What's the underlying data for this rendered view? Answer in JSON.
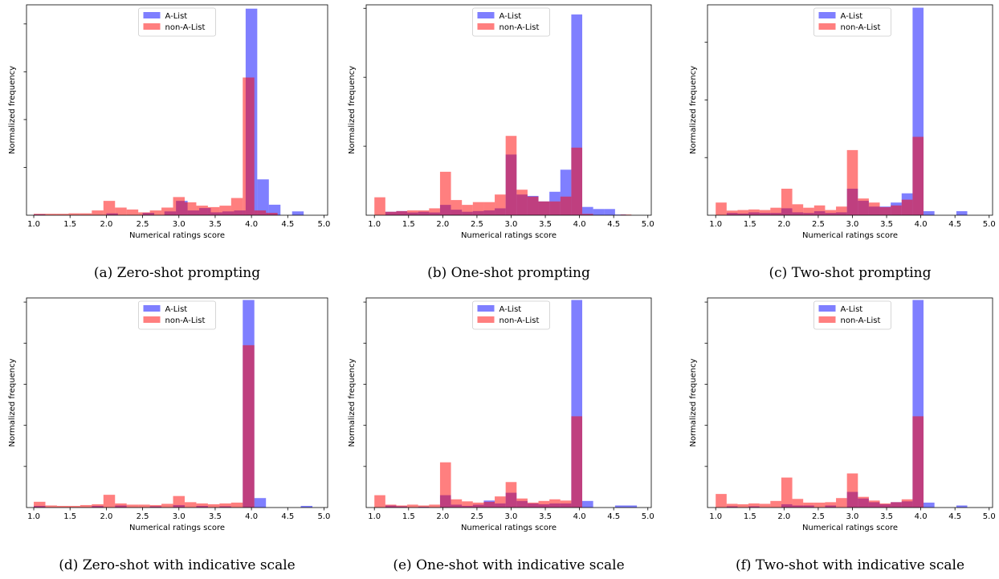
{
  "colors": {
    "alist": "#0000ff",
    "nonalist": "#ff0000"
  },
  "chart_data": [
    {
      "type": "bar",
      "caption": "(a) Zero-shot prompting",
      "xlabel": "Numerical ratings score",
      "ylabel": "Normalized frequency",
      "xlim": [
        0.9,
        5.05
      ],
      "ylim": [
        0,
        4.4
      ],
      "xticks": [
        "1.0",
        "1.5",
        "2.0",
        "2.5",
        "3.0",
        "3.5",
        "4.0",
        "4.5",
        "5.0"
      ],
      "bin_width": 0.16,
      "legend": {
        "position": "top-center",
        "entries": [
          "A-List",
          "non-A-List"
        ]
      },
      "series": [
        {
          "name": "A-List",
          "bins": [
            [
              1.0,
              0.02
            ],
            [
              2.0,
              0.04
            ],
            [
              2.5,
              0.05
            ],
            [
              2.8,
              0.08
            ],
            [
              2.96,
              0.3
            ],
            [
              3.12,
              0.1
            ],
            [
              3.28,
              0.15
            ],
            [
              3.44,
              0.06
            ],
            [
              3.6,
              0.08
            ],
            [
              3.76,
              0.1
            ],
            [
              3.92,
              4.32
            ],
            [
              4.08,
              0.75
            ],
            [
              4.24,
              0.22
            ],
            [
              4.56,
              0.08
            ]
          ]
        },
        {
          "name": "non-A-List",
          "bins": [
            [
              1.0,
              0.03
            ],
            [
              1.16,
              0.03
            ],
            [
              1.32,
              0.03
            ],
            [
              1.48,
              0.04
            ],
            [
              1.64,
              0.04
            ],
            [
              1.8,
              0.1
            ],
            [
              1.96,
              0.3
            ],
            [
              2.12,
              0.16
            ],
            [
              2.28,
              0.12
            ],
            [
              2.44,
              0.06
            ],
            [
              2.6,
              0.1
            ],
            [
              2.76,
              0.16
            ],
            [
              2.92,
              0.38
            ],
            [
              3.08,
              0.27
            ],
            [
              3.24,
              0.2
            ],
            [
              3.4,
              0.17
            ],
            [
              3.56,
              0.2
            ],
            [
              3.72,
              0.36
            ],
            [
              3.88,
              2.88
            ],
            [
              4.04,
              0.1
            ],
            [
              4.2,
              0.05
            ]
          ]
        }
      ]
    },
    {
      "type": "bar",
      "caption": "(b) One-shot prompting",
      "xlabel": "Numerical ratings score",
      "ylabel": "Normalized frequency",
      "xlim": [
        0.88,
        5.05
      ],
      "ylim": [
        0,
        3.05
      ],
      "xticks": [
        "1.0",
        "1.5",
        "2.0",
        "2.5",
        "3.0",
        "3.5",
        "4.0",
        "4.5",
        "5.0"
      ],
      "bin_width": 0.16,
      "legend": {
        "position": "top-center",
        "entries": [
          "A-List",
          "non-A-List"
        ]
      },
      "series": [
        {
          "name": "A-List",
          "bins": [
            [
              1.16,
              0.05
            ],
            [
              1.32,
              0.06
            ],
            [
              1.48,
              0.04
            ],
            [
              1.64,
              0.05
            ],
            [
              1.8,
              0.04
            ],
            [
              1.96,
              0.15
            ],
            [
              2.12,
              0.08
            ],
            [
              2.28,
              0.05
            ],
            [
              2.44,
              0.06
            ],
            [
              2.6,
              0.07
            ],
            [
              2.76,
              0.1
            ],
            [
              2.92,
              0.88
            ],
            [
              3.08,
              0.3
            ],
            [
              3.24,
              0.28
            ],
            [
              3.4,
              0.2
            ],
            [
              3.56,
              0.34
            ],
            [
              3.72,
              0.66
            ],
            [
              3.88,
              2.91
            ],
            [
              4.04,
              0.12
            ],
            [
              4.2,
              0.09
            ],
            [
              4.36,
              0.09
            ],
            [
              4.52,
              0.01
            ]
          ]
        },
        {
          "name": "non-A-List",
          "bins": [
            [
              1.0,
              0.26
            ],
            [
              1.16,
              0.05
            ],
            [
              1.32,
              0.06
            ],
            [
              1.48,
              0.07
            ],
            [
              1.64,
              0.07
            ],
            [
              1.8,
              0.1
            ],
            [
              1.96,
              0.63
            ],
            [
              2.12,
              0.22
            ],
            [
              2.28,
              0.15
            ],
            [
              2.44,
              0.19
            ],
            [
              2.6,
              0.19
            ],
            [
              2.76,
              0.3
            ],
            [
              2.92,
              1.15
            ],
            [
              3.08,
              0.37
            ],
            [
              3.24,
              0.27
            ],
            [
              3.4,
              0.2
            ],
            [
              3.56,
              0.2
            ],
            [
              3.72,
              0.27
            ],
            [
              3.88,
              0.98
            ],
            [
              4.04,
              0.02
            ],
            [
              4.6,
              0.01
            ]
          ]
        }
      ]
    },
    {
      "type": "bar",
      "caption": "(c) Two-shot prompting",
      "xlabel": "Numerical ratings score",
      "ylabel": "Normalized frequency",
      "xlim": [
        0.88,
        5.05
      ],
      "ylim": [
        0,
        3.65
      ],
      "xticks": [
        "1.0",
        "1.5",
        "2.0",
        "2.5",
        "3.0",
        "3.5",
        "4.0",
        "4.5",
        "5.0"
      ],
      "bin_width": 0.16,
      "legend": {
        "position": "top-center",
        "entries": [
          "A-List",
          "non-A-List"
        ]
      },
      "series": [
        {
          "name": "A-List",
          "bins": [
            [
              1.16,
              0.04
            ],
            [
              1.32,
              0.03
            ],
            [
              1.48,
              0.05
            ],
            [
              1.64,
              0.04
            ],
            [
              1.8,
              0.04
            ],
            [
              1.96,
              0.12
            ],
            [
              2.12,
              0.05
            ],
            [
              2.28,
              0.04
            ],
            [
              2.44,
              0.07
            ],
            [
              2.6,
              0.04
            ],
            [
              2.76,
              0.05
            ],
            [
              2.92,
              0.46
            ],
            [
              3.08,
              0.25
            ],
            [
              3.24,
              0.15
            ],
            [
              3.4,
              0.15
            ],
            [
              3.56,
              0.22
            ],
            [
              3.72,
              0.38
            ],
            [
              3.88,
              3.6
            ],
            [
              4.04,
              0.07
            ],
            [
              4.52,
              0.07
            ]
          ]
        },
        {
          "name": "non-A-List",
          "bins": [
            [
              1.0,
              0.22
            ],
            [
              1.16,
              0.08
            ],
            [
              1.32,
              0.09
            ],
            [
              1.48,
              0.1
            ],
            [
              1.64,
              0.09
            ],
            [
              1.8,
              0.13
            ],
            [
              1.96,
              0.46
            ],
            [
              2.12,
              0.19
            ],
            [
              2.28,
              0.13
            ],
            [
              2.44,
              0.17
            ],
            [
              2.6,
              0.09
            ],
            [
              2.76,
              0.15
            ],
            [
              2.92,
              1.13
            ],
            [
              3.08,
              0.29
            ],
            [
              3.24,
              0.22
            ],
            [
              3.4,
              0.14
            ],
            [
              3.56,
              0.17
            ],
            [
              3.72,
              0.27
            ],
            [
              3.88,
              1.36
            ]
          ]
        }
      ]
    },
    {
      "type": "bar",
      "caption": "(d) Zero-shot with indicative scale",
      "xlabel": "Numerical ratings score",
      "ylabel": "Normalized frequency",
      "xlim": [
        0.9,
        5.05
      ],
      "ylim": [
        0,
        5.1
      ],
      "xticks": [
        "1.0",
        "1.5",
        "2.0",
        "2.5",
        "3.0",
        "3.5",
        "4.0",
        "4.5",
        "5.0"
      ],
      "bin_width": 0.16,
      "legend": {
        "position": "top-center",
        "entries": [
          "A-List",
          "non-A-List"
        ]
      },
      "series": [
        {
          "name": "A-List",
          "bins": [
            [
              1.0,
              0.04
            ],
            [
              1.8,
              0.04
            ],
            [
              2.12,
              0.05
            ],
            [
              2.6,
              0.03
            ],
            [
              2.92,
              0.06
            ],
            [
              3.24,
              0.04
            ],
            [
              3.56,
              0.03
            ],
            [
              3.88,
              5.05
            ],
            [
              4.04,
              0.23
            ],
            [
              4.68,
              0.04
            ]
          ]
        },
        {
          "name": "non-A-List",
          "bins": [
            [
              1.0,
              0.14
            ],
            [
              1.16,
              0.05
            ],
            [
              1.32,
              0.04
            ],
            [
              1.48,
              0.04
            ],
            [
              1.64,
              0.06
            ],
            [
              1.8,
              0.08
            ],
            [
              1.96,
              0.31
            ],
            [
              2.12,
              0.1
            ],
            [
              2.28,
              0.07
            ],
            [
              2.44,
              0.07
            ],
            [
              2.6,
              0.06
            ],
            [
              2.76,
              0.09
            ],
            [
              2.92,
              0.28
            ],
            [
              3.08,
              0.13
            ],
            [
              3.24,
              0.1
            ],
            [
              3.4,
              0.08
            ],
            [
              3.56,
              0.1
            ],
            [
              3.72,
              0.12
            ],
            [
              3.88,
              3.95
            ]
          ]
        }
      ]
    },
    {
      "type": "bar",
      "caption": "(e) One-shot with indicative scale",
      "xlabel": "Numerical ratings score",
      "ylabel": "Normalized frequency",
      "xlim": [
        0.88,
        5.05
      ],
      "ylim": [
        0,
        5.1
      ],
      "xticks": [
        "1.0",
        "1.5",
        "2.0",
        "2.5",
        "3.0",
        "3.5",
        "4.0",
        "4.5",
        "5.0"
      ],
      "bin_width": 0.16,
      "legend": {
        "position": "top-center",
        "entries": [
          "A-List",
          "non-A-List"
        ]
      },
      "series": [
        {
          "name": "A-List",
          "bins": [
            [
              1.16,
              0.05
            ],
            [
              1.32,
              0.03
            ],
            [
              1.64,
              0.02
            ],
            [
              1.96,
              0.3
            ],
            [
              2.12,
              0.07
            ],
            [
              2.28,
              0.04
            ],
            [
              2.44,
              0.07
            ],
            [
              2.6,
              0.17
            ],
            [
              2.76,
              0.1
            ],
            [
              2.92,
              0.36
            ],
            [
              3.08,
              0.16
            ],
            [
              3.24,
              0.1
            ],
            [
              3.4,
              0.08
            ],
            [
              3.56,
              0.1
            ],
            [
              3.72,
              0.1
            ],
            [
              3.88,
              5.05
            ],
            [
              4.04,
              0.16
            ],
            [
              4.52,
              0.05
            ],
            [
              4.68,
              0.05
            ]
          ]
        },
        {
          "name": "non-A-List",
          "bins": [
            [
              1.0,
              0.3
            ],
            [
              1.16,
              0.07
            ],
            [
              1.32,
              0.05
            ],
            [
              1.48,
              0.07
            ],
            [
              1.64,
              0.05
            ],
            [
              1.8,
              0.07
            ],
            [
              1.96,
              1.1
            ],
            [
              2.12,
              0.2
            ],
            [
              2.28,
              0.15
            ],
            [
              2.44,
              0.12
            ],
            [
              2.6,
              0.14
            ],
            [
              2.76,
              0.27
            ],
            [
              2.92,
              0.62
            ],
            [
              3.08,
              0.22
            ],
            [
              3.24,
              0.12
            ],
            [
              3.4,
              0.16
            ],
            [
              3.56,
              0.2
            ],
            [
              3.72,
              0.17
            ],
            [
              3.88,
              2.22
            ]
          ]
        }
      ]
    },
    {
      "type": "bar",
      "caption": "(f) Two-shot with indicative scale",
      "xlabel": "Numerical ratings score",
      "ylabel": "Normalized frequency",
      "xlim": [
        0.88,
        5.05
      ],
      "ylim": [
        0,
        5.1
      ],
      "xticks": [
        "1.0",
        "1.5",
        "2.0",
        "2.5",
        "3.0",
        "3.5",
        "4.0",
        "4.5",
        "5.0"
      ],
      "bin_width": 0.16,
      "legend": {
        "position": "top-center",
        "entries": [
          "A-List",
          "non-A-List"
        ]
      },
      "series": [
        {
          "name": "A-List",
          "bins": [
            [
              1.16,
              0.03
            ],
            [
              1.48,
              0.03
            ],
            [
              1.96,
              0.08
            ],
            [
              2.12,
              0.05
            ],
            [
              2.28,
              0.05
            ],
            [
              2.6,
              0.05
            ],
            [
              2.92,
              0.38
            ],
            [
              3.08,
              0.22
            ],
            [
              3.24,
              0.13
            ],
            [
              3.4,
              0.08
            ],
            [
              3.56,
              0.13
            ],
            [
              3.72,
              0.15
            ],
            [
              3.88,
              5.05
            ],
            [
              4.04,
              0.12
            ],
            [
              4.52,
              0.05
            ]
          ]
        },
        {
          "name": "non-A-List",
          "bins": [
            [
              1.0,
              0.33
            ],
            [
              1.16,
              0.09
            ],
            [
              1.32,
              0.08
            ],
            [
              1.48,
              0.1
            ],
            [
              1.64,
              0.09
            ],
            [
              1.8,
              0.16
            ],
            [
              1.96,
              0.73
            ],
            [
              2.12,
              0.21
            ],
            [
              2.28,
              0.12
            ],
            [
              2.44,
              0.12
            ],
            [
              2.6,
              0.13
            ],
            [
              2.76,
              0.23
            ],
            [
              2.92,
              0.83
            ],
            [
              3.08,
              0.26
            ],
            [
              3.24,
              0.17
            ],
            [
              3.4,
              0.1
            ],
            [
              3.56,
              0.13
            ],
            [
              3.72,
              0.2
            ],
            [
              3.88,
              2.22
            ]
          ]
        }
      ]
    }
  ]
}
